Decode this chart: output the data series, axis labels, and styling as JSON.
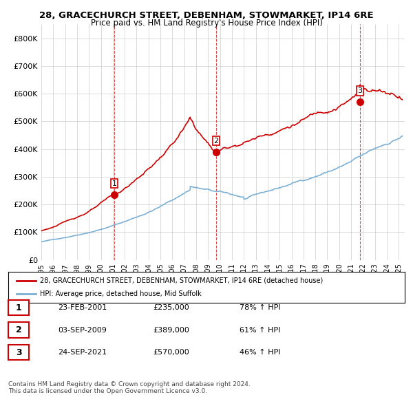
{
  "title": "28, GRACECHURCH STREET, DEBENHAM, STOWMARKET, IP14 6RE",
  "subtitle": "Price paid vs. HM Land Registry's House Price Index (HPI)",
  "ylabel": "",
  "ylim": [
    0,
    850000
  ],
  "yticks": [
    0,
    100000,
    200000,
    300000,
    400000,
    500000,
    600000,
    700000,
    800000
  ],
  "xlim_start": 1995.0,
  "xlim_end": 2025.5,
  "hpi_color": "#7bafd4",
  "price_color": "#cc0000",
  "sale_marker_color": "#cc0000",
  "sale_dates": [
    2001.14,
    2009.67,
    2021.73
  ],
  "sale_prices": [
    235000,
    389000,
    570000
  ],
  "sale_labels": [
    "1",
    "2",
    "3"
  ],
  "legend_line1": "28, GRACECHURCH STREET, DEBENHAM, STOWMARKET, IP14 6RE (detached house)",
  "legend_line2": "HPI: Average price, detached house, Mid Suffolk",
  "table_data": [
    [
      "1",
      "23-FEB-2001",
      "£235,000",
      "78% ↑ HPI"
    ],
    [
      "2",
      "03-SEP-2009",
      "£389,000",
      "61% ↑ HPI"
    ],
    [
      "3",
      "24-SEP-2021",
      "£570,000",
      "46% ↑ HPI"
    ]
  ],
  "footer1": "Contains HM Land Registry data © Crown copyright and database right 2024.",
  "footer2": "This data is licensed under the Open Government Licence v3.0.",
  "background_color": "#ffffff",
  "grid_color": "#cccccc"
}
